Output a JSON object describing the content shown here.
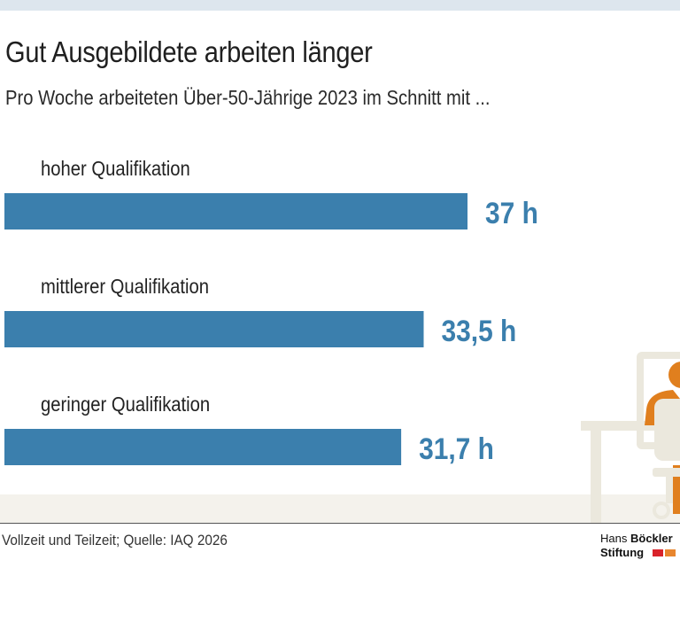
{
  "header": {
    "title": "Gut Ausgebildete arbeiten länger",
    "subtitle": "Pro Woche arbeiteten Über-50-Jährige 2023 im Schnitt mit ..."
  },
  "footer": {
    "source": "Vollzeit und Teilzeit; Quelle: IAQ 2026",
    "logo_line1_regular": "Hans",
    "logo_line1_bold": "Böckler",
    "logo_line2": "Stiftung"
  },
  "colors": {
    "bar": "#3b7fad",
    "value_text": "#3b7fad",
    "illustration_orange": "#e07f1e",
    "illustration_light": "#ebe8dd"
  },
  "illustration": {
    "icon": "person-at-desk-illustration"
  },
  "chart_data": {
    "type": "bar",
    "orientation": "horizontal",
    "categories": [
      "hoher Qualifikation",
      "mittlerer Qualifikation",
      "geringer Qualifikation"
    ],
    "values": [
      37,
      33.5,
      31.7
    ],
    "value_labels": [
      "37 h",
      "33,5 h",
      "31,7 h"
    ],
    "unit": "h",
    "xlim": [
      0,
      37
    ],
    "grid": false,
    "legend": "none"
  }
}
